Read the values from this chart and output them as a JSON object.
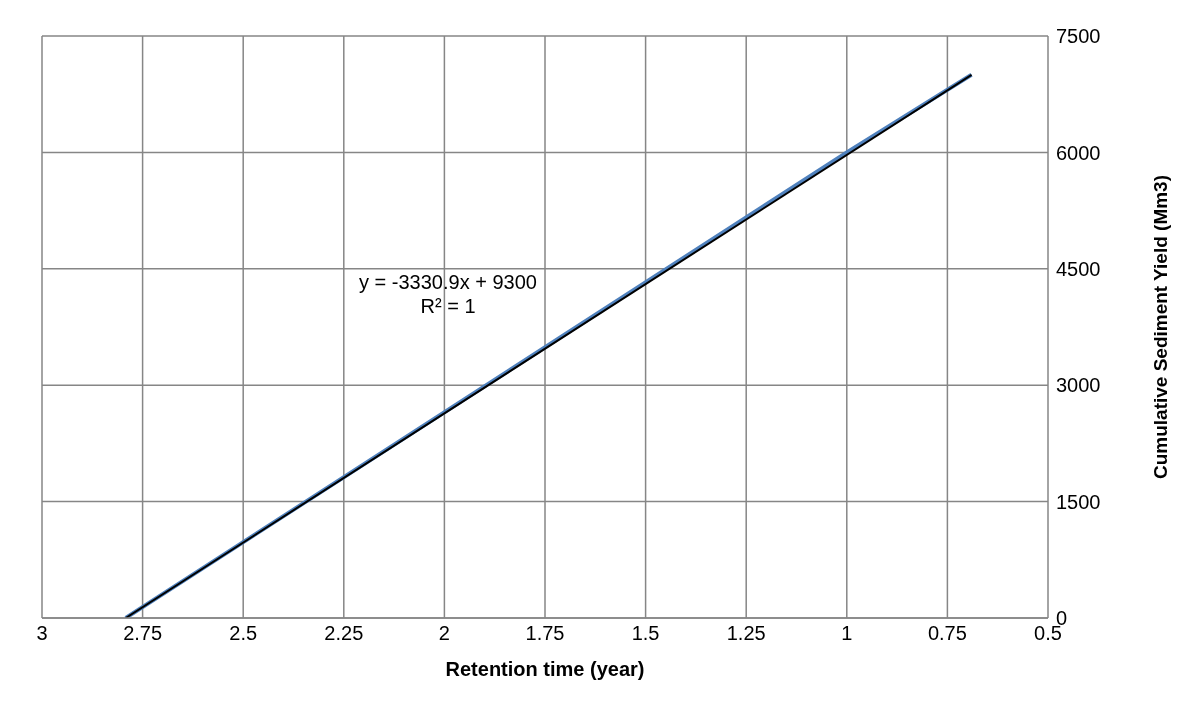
{
  "chart_data": {
    "type": "line",
    "xlabel": "Retention time (year)",
    "ylabel": "Cumulative Sediment Yield (Mm3)",
    "series": [
      {
        "color": "#4f81bd",
        "x": [
          2.792,
          1,
          0.69
        ],
        "values": [
          0,
          6000,
          7000
        ]
      },
      {
        "color": "#000000",
        "x": [
          2.792,
          0.69
        ],
        "values": [
          0,
          7000
        ]
      }
    ],
    "annotations": [
      "y = -3330.9x + 9300",
      "R² = 1"
    ],
    "xlim": [
      3,
      0.5
    ],
    "xticks": [
      3,
      2.75,
      2.5,
      2.25,
      2,
      1.75,
      1.5,
      1.25,
      1,
      0.75,
      0.5
    ],
    "ylim": [
      0,
      7500
    ],
    "yticks": [
      0,
      1500,
      3000,
      4500,
      6000,
      7500
    ],
    "grid": true,
    "marker": "none",
    "line_style": "solid"
  }
}
